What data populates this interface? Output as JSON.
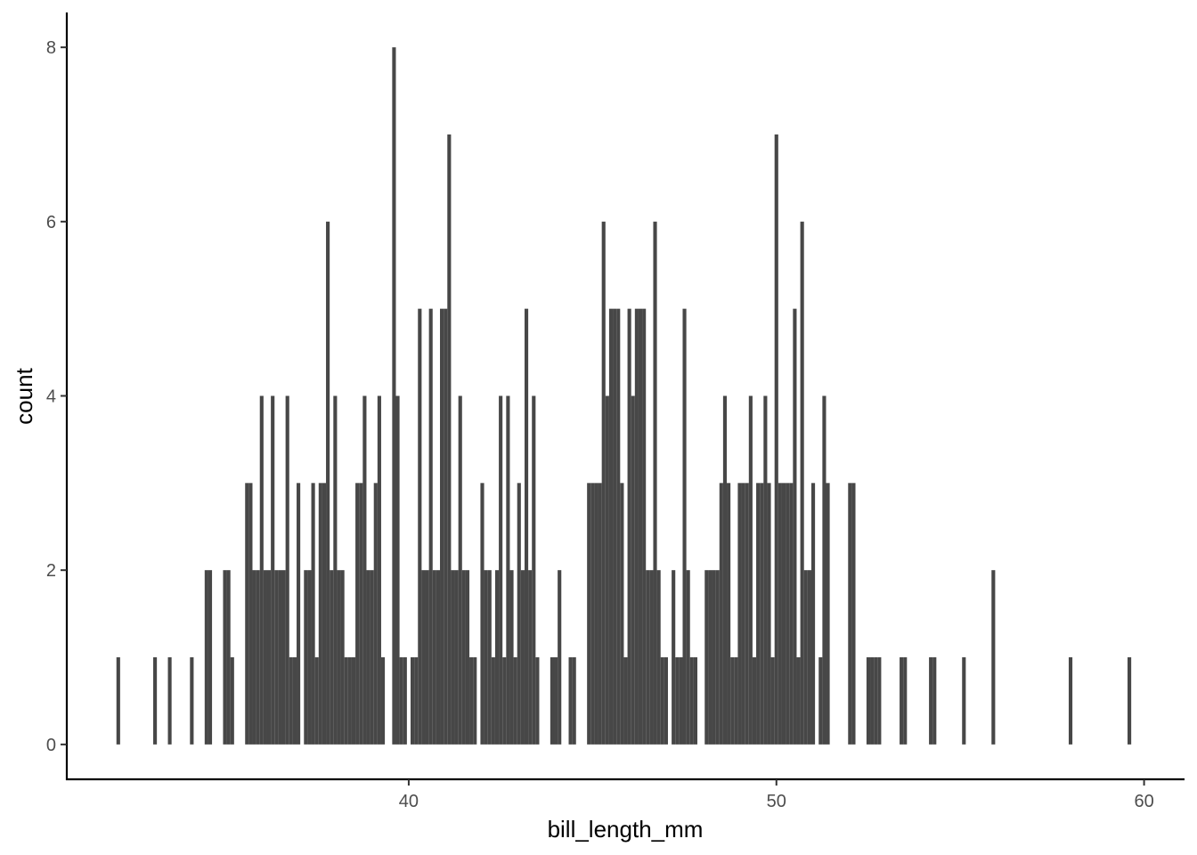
{
  "chart_data": {
    "type": "histogram",
    "x_label": "bill_length_mm",
    "y_label": "count",
    "color": "#474747",
    "grid": false,
    "xlim": [
      30.7,
      61.1
    ],
    "ylim": [
      -0.4,
      8.4
    ],
    "xticks": [
      40,
      50,
      60
    ],
    "yticks": [
      0,
      2,
      4,
      6,
      8
    ],
    "bins": [
      32.05,
      32.15,
      32.25,
      32.35,
      32.45,
      32.55,
      32.65,
      32.75,
      32.85,
      32.95,
      33.05,
      33.15,
      33.25,
      33.35,
      33.45,
      33.55,
      33.65,
      33.75,
      33.85,
      33.95,
      34.05,
      34.15,
      34.25,
      34.35,
      34.45,
      34.55,
      34.65,
      34.75,
      34.85,
      34.95,
      35.05,
      35.15,
      35.25,
      35.35,
      35.45,
      35.55,
      35.65,
      35.75,
      35.85,
      35.95,
      36.05,
      36.15,
      36.25,
      36.35,
      36.45,
      36.55,
      36.65,
      36.75,
      36.85,
      36.95,
      37.05,
      37.15,
      37.25,
      37.35,
      37.45,
      37.55,
      37.65,
      37.75,
      37.85,
      37.95,
      38.05,
      38.15,
      38.25,
      38.35,
      38.45,
      38.55,
      38.65,
      38.75,
      38.85,
      38.95,
      39.05,
      39.15,
      39.25,
      39.35,
      39.45,
      39.55,
      39.65,
      39.75,
      39.85,
      39.95,
      40.05,
      40.15,
      40.25,
      40.35,
      40.45,
      40.55,
      40.65,
      40.75,
      40.85,
      40.95,
      41.05,
      41.15,
      41.25,
      41.35,
      41.45,
      41.55,
      41.65,
      41.75,
      41.85,
      41.95,
      42.05,
      42.15,
      42.25,
      42.35,
      42.45,
      42.55,
      42.65,
      42.75,
      42.85,
      42.95,
      43.05,
      43.15,
      43.25,
      43.35,
      43.45,
      43.55,
      43.65,
      43.75,
      43.85,
      43.95,
      44.05,
      44.15,
      44.25,
      44.35,
      44.45,
      44.55,
      44.65,
      44.75,
      44.85,
      44.95,
      45.05,
      45.15,
      45.25,
      45.35,
      45.45,
      45.55,
      45.65,
      45.75,
      45.85,
      45.95,
      46.05,
      46.15,
      46.25,
      46.35,
      46.45,
      46.55,
      46.65,
      46.75,
      46.85,
      46.95,
      47.05,
      47.15,
      47.25,
      47.35,
      47.45,
      47.55,
      47.65,
      47.75,
      47.85,
      47.95,
      48.05,
      48.15,
      48.25,
      48.35,
      48.45,
      48.55,
      48.65,
      48.75,
      48.85,
      48.95,
      49.05,
      49.15,
      49.25,
      49.35,
      49.45,
      49.55,
      49.65,
      49.75,
      49.85,
      49.95,
      50.05,
      50.15,
      50.25,
      50.35,
      50.45,
      50.55,
      50.65,
      50.75,
      50.85,
      50.95,
      51.05,
      51.15,
      51.25,
      51.35,
      51.45,
      51.55,
      51.65,
      51.75,
      51.85,
      51.95,
      52.05,
      52.15,
      52.25,
      52.35,
      52.45,
      52.55,
      52.65,
      52.75,
      52.85,
      52.95,
      53.05,
      53.15,
      53.25,
      53.35,
      53.45,
      53.55,
      53.65,
      53.75,
      53.85,
      53.95,
      54.05,
      54.15,
      54.25,
      54.35,
      54.45,
      54.55,
      54.65,
      54.75,
      54.85,
      54.95,
      55.05,
      55.15,
      55.25,
      55.35,
      55.45,
      55.55,
      55.65,
      55.75,
      55.85,
      55.95,
      56.05,
      56.15,
      56.25,
      56.35,
      56.45,
      56.55,
      56.65,
      56.75,
      56.85,
      56.95,
      57.05,
      57.15,
      57.25,
      57.35,
      57.45,
      57.55,
      57.65,
      57.75,
      57.85,
      57.95,
      58.05,
      58.15,
      58.25,
      58.35,
      58.45,
      58.55,
      58.65,
      58.75,
      58.85,
      58.95,
      59.05,
      59.15,
      59.25,
      59.35,
      59.45,
      59.55,
      59.65
    ],
    "values": [
      1,
      0,
      0,
      0,
      0,
      0,
      0,
      0,
      0,
      0,
      1,
      0,
      0,
      0,
      1,
      0,
      0,
      0,
      0,
      0,
      1,
      0,
      0,
      0,
      2,
      2,
      0,
      0,
      0,
      2,
      2,
      1,
      0,
      0,
      0,
      3,
      3,
      2,
      2,
      4,
      2,
      2,
      4,
      2,
      2,
      2,
      4,
      1,
      1,
      3,
      0,
      2,
      2,
      3,
      1,
      3,
      3,
      6,
      2,
      4,
      2,
      2,
      1,
      1,
      1,
      3,
      3,
      4,
      2,
      2,
      3,
      4,
      1,
      0,
      0,
      8,
      4,
      1,
      1,
      0,
      1,
      1,
      5,
      2,
      2,
      5,
      2,
      2,
      5,
      5,
      7,
      2,
      2,
      4,
      2,
      2,
      1,
      1,
      0,
      3,
      2,
      2,
      1,
      2,
      4,
      1,
      4,
      2,
      1,
      3,
      2,
      5,
      2,
      4,
      1,
      0,
      0,
      0,
      1,
      1,
      2,
      0,
      0,
      1,
      1,
      0,
      0,
      0,
      3,
      3,
      3,
      3,
      6,
      4,
      5,
      5,
      5,
      3,
      1,
      5,
      4,
      5,
      5,
      5,
      2,
      2,
      6,
      2,
      1,
      1,
      0,
      2,
      1,
      1,
      5,
      2,
      1,
      1,
      0,
      0,
      2,
      2,
      2,
      2,
      3,
      4,
      3,
      1,
      1,
      3,
      3,
      3,
      4,
      1,
      3,
      3,
      4,
      3,
      1,
      7,
      3,
      3,
      3,
      3,
      5,
      1,
      6,
      2,
      2,
      3,
      0,
      1,
      4,
      3,
      0,
      0,
      0,
      0,
      0,
      3,
      3,
      0,
      0,
      0,
      1,
      1,
      1,
      1,
      0,
      0,
      0,
      0,
      0,
      1,
      1,
      0,
      0,
      0,
      0,
      0,
      0,
      1,
      1,
      0,
      0,
      0,
      0,
      0,
      0,
      0,
      1,
      0,
      0,
      0,
      0,
      0,
      0,
      0,
      2,
      0,
      0,
      0,
      0,
      0,
      0,
      0,
      0,
      0,
      0,
      0,
      0,
      0,
      0,
      0,
      0,
      0,
      0,
      0,
      0,
      1,
      0,
      0,
      0,
      0,
      0,
      0,
      0,
      0,
      0,
      0,
      0,
      0,
      0,
      0,
      0,
      1
    ]
  }
}
